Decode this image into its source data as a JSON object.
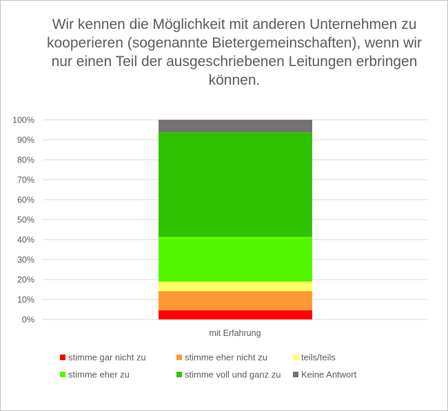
{
  "chart_data": {
    "type": "bar",
    "stacked": true,
    "percent_stacked": true,
    "title": "Wir kennen die Möglichkeit mit anderen Unternehmen zu kooperieren (sogenannte Bietergemeinschaften), wenn wir nur einen Teil der ausgeschriebenen Leitungen erbringen können.",
    "categories": [
      "mit Erfahrung"
    ],
    "ylim": [
      0,
      100
    ],
    "yticks": [
      "0%",
      "10%",
      "20%",
      "30%",
      "40%",
      "50%",
      "60%",
      "70%",
      "80%",
      "90%",
      "100%"
    ],
    "grid": true,
    "legend_position": "bottom",
    "series": [
      {
        "name": "stimme gar nicht zu",
        "color": "#ff0000",
        "values": [
          4.6
        ]
      },
      {
        "name": "stimme eher nicht zu",
        "color": "#ff9933",
        "values": [
          9.6
        ]
      },
      {
        "name": "teils/teils",
        "color": "#ffff66",
        "values": [
          4.7
        ]
      },
      {
        "name": "stimme eher zu",
        "color": "#55f700",
        "values": [
          22.4
        ]
      },
      {
        "name": "stimme voll und ganz zu",
        "color": "#2fc200",
        "values": [
          52.4
        ]
      },
      {
        "name": "Keine Antwort",
        "color": "#767171",
        "values": [
          6.3
        ]
      }
    ]
  }
}
